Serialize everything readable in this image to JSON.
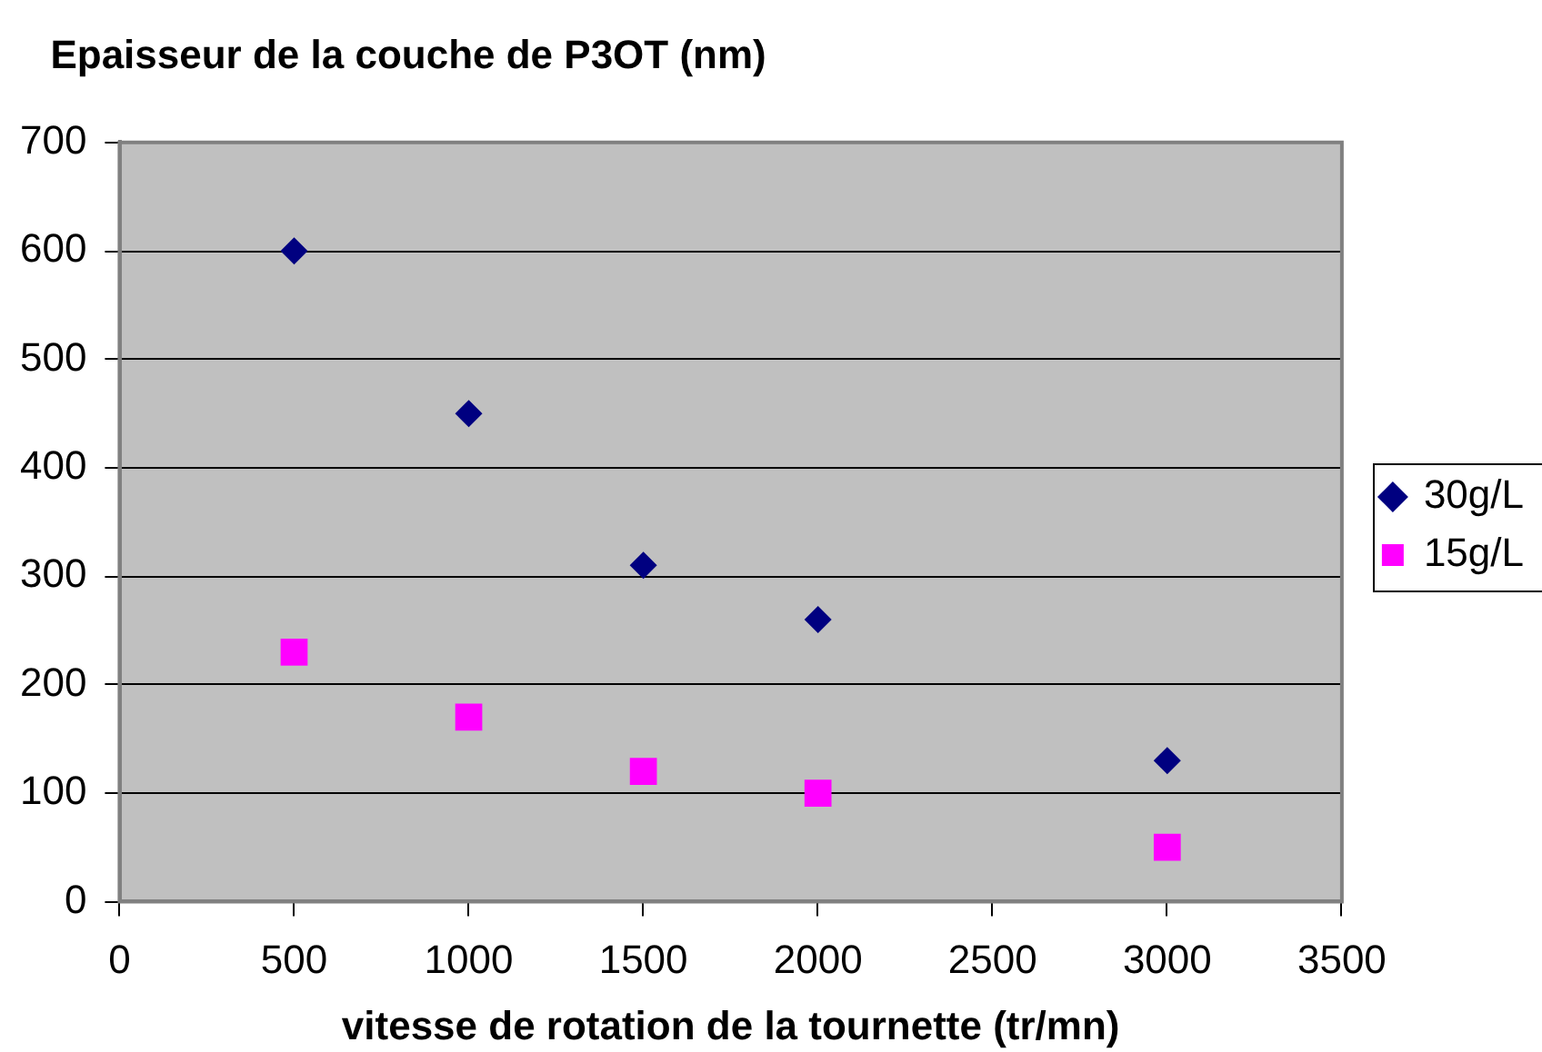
{
  "chart_data": {
    "type": "scatter",
    "title": "Epaisseur de la couche de P3OT (nm)",
    "xlabel": "vitesse de rotation de la tournette (tr/mn)",
    "x": [
      500,
      1000,
      1500,
      2000,
      3000
    ],
    "series": [
      {
        "name": "30g/L",
        "color": "#000080",
        "marker": "diamond",
        "values": [
          600,
          450,
          310,
          260,
          130
        ]
      },
      {
        "name": "15g/L",
        "color": "#ff00ff",
        "marker": "square",
        "values": [
          230,
          170,
          120,
          100,
          50
        ]
      }
    ],
    "xlim": [
      0,
      3500
    ],
    "xticks": [
      0,
      500,
      1000,
      1500,
      2000,
      2500,
      3000,
      3500
    ],
    "ylim": [
      0,
      700
    ],
    "yticks": [
      0,
      100,
      200,
      300,
      400,
      500,
      600,
      700
    ],
    "grid": "y",
    "legend": "right"
  }
}
